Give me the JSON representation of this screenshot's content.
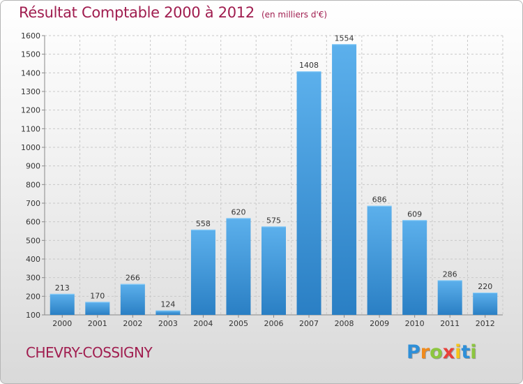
{
  "header": {
    "title": "Résultat Comptable 2000 à 2012",
    "unit": "(en milliers d'€)"
  },
  "footer": {
    "commune": "CHEVRY-COSSIGNY",
    "logo": "Proxiti"
  },
  "colors": {
    "title": "#a01d4f",
    "bar_top": "#5cb0ec",
    "bar_bottom": "#2a7fc4"
  },
  "logo_letters": [
    {
      "ch": "P",
      "color": "#2e8fd8"
    },
    {
      "ch": "r",
      "color": "#f08a1c"
    },
    {
      "ch": "o",
      "color": "#8cc63f"
    },
    {
      "ch": "x",
      "color": "#e8403a"
    },
    {
      "ch": "i",
      "color": "#f5c518"
    },
    {
      "ch": "t",
      "color": "#2e8fd8"
    },
    {
      "ch": "i",
      "color": "#8cc63f"
    }
  ],
  "chart_data": {
    "type": "bar",
    "title": "Résultat Comptable 2000 à 2012",
    "xlabel": "",
    "ylabel": "",
    "categories": [
      "2000",
      "2001",
      "2002",
      "2003",
      "2004",
      "2005",
      "2006",
      "2007",
      "2008",
      "2009",
      "2010",
      "2011",
      "2012"
    ],
    "values": [
      213,
      170,
      266,
      124,
      558,
      620,
      575,
      1408,
      1554,
      686,
      609,
      286,
      220
    ],
    "ylim": [
      100,
      1600
    ],
    "yticks": [
      100,
      200,
      300,
      400,
      500,
      600,
      700,
      800,
      900,
      1000,
      1100,
      1200,
      1300,
      1400,
      1500,
      1600
    ],
    "grid": true
  }
}
